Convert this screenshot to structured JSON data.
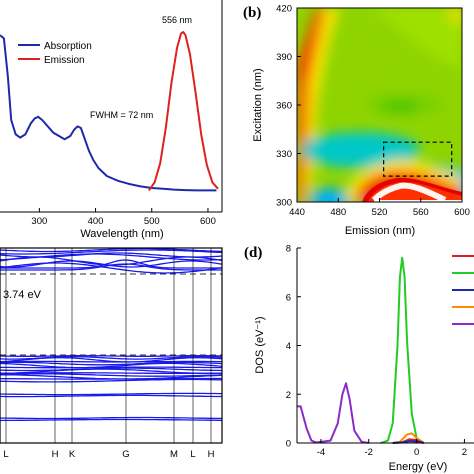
{
  "chart_data": [
    {
      "panel": "a",
      "panel_label": "",
      "type": "line",
      "xlabel": "Wavelength (nm)",
      "xlim": [
        230,
        625
      ],
      "xticks": [
        300,
        400,
        500,
        600
      ],
      "ylim": [
        0,
        1.1
      ],
      "legend": {
        "placement": "top-left",
        "entries": [
          "Absorption",
          "Emission"
        ]
      },
      "annotations": {
        "peak": "556 nm",
        "fwhm": "FWHM = 72 nm"
      },
      "series": [
        {
          "name": "Absorption",
          "color": "#1f2aa8",
          "x": [
            230,
            237,
            244,
            250,
            258,
            266,
            275,
            285,
            292,
            298,
            305,
            315,
            325,
            335,
            345,
            355,
            362,
            368,
            374,
            380,
            388,
            396,
            405,
            420,
            440,
            460,
            480,
            500,
            520,
            540,
            560,
            580,
            600,
            615
          ],
          "y": [
            0.98,
            0.96,
            0.72,
            0.45,
            0.36,
            0.34,
            0.36,
            0.43,
            0.46,
            0.47,
            0.45,
            0.41,
            0.37,
            0.35,
            0.33,
            0.35,
            0.39,
            0.41,
            0.4,
            0.34,
            0.26,
            0.2,
            0.15,
            0.1,
            0.07,
            0.05,
            0.035,
            0.025,
            0.02,
            0.015,
            0.012,
            0.01,
            0.01,
            0.01
          ]
        },
        {
          "name": "Emission",
          "color": "#e02020",
          "x": [
            495,
            505,
            515,
            525,
            535,
            545,
            552,
            556,
            560,
            568,
            578,
            588,
            598,
            608,
            618
          ],
          "y": [
            0.01,
            0.06,
            0.18,
            0.4,
            0.68,
            0.9,
            0.99,
            1.0,
            0.98,
            0.86,
            0.62,
            0.36,
            0.17,
            0.06,
            0.02
          ]
        }
      ]
    },
    {
      "panel": "b",
      "panel_label": "(b)",
      "type": "heatmap",
      "xlabel": "Emission (nm)",
      "ylabel": "Excitation (nm)",
      "xlim": [
        440,
        600
      ],
      "ylim": [
        300,
        420
      ],
      "xticks": [
        440,
        480,
        520,
        560,
        600
      ],
      "yticks": [
        300,
        330,
        360,
        390,
        420
      ],
      "highlight_box": {
        "x": [
          524,
          590
        ],
        "y": [
          316,
          337
        ]
      }
    },
    {
      "panel": "c",
      "panel_label": "",
      "type": "line",
      "xtick_labels": [
        "L",
        "H",
        "K",
        "G",
        "M",
        "L",
        "H"
      ],
      "band_gap_label": "3.74 eV",
      "line_color": "#1a1aee"
    },
    {
      "panel": "d",
      "panel_label": "(d)",
      "type": "line",
      "xlabel": "Energy (eV)",
      "ylabel": "DOS (eV⁻¹)",
      "xlim": [
        -5,
        2.4
      ],
      "ylim": [
        0,
        8
      ],
      "xticks": [
        -4,
        -2,
        0,
        2
      ],
      "yticks": [
        0,
        2,
        4,
        6,
        8
      ],
      "legend_colors": [
        "#e02020",
        "#22cc22",
        "#1f2aa8",
        "#ff8c00",
        "#8b2bc9"
      ],
      "series": [
        {
          "color": "#22cc22",
          "x": [
            -1.5,
            -1.2,
            -1.0,
            -0.8,
            -0.7,
            -0.6,
            -0.5,
            -0.4,
            -0.2,
            0.0,
            0.3
          ],
          "y": [
            0,
            0.1,
            0.8,
            4.0,
            6.8,
            7.6,
            6.8,
            4.2,
            1.2,
            0.2,
            0
          ]
        },
        {
          "color": "#8b2bc9",
          "x": [
            -5.0,
            -4.85,
            -4.6,
            -4.4,
            -4.2,
            -3.6,
            -3.3,
            -3.1,
            -2.95,
            -2.8,
            -2.6,
            -2.3,
            -2.0
          ],
          "y": [
            1.5,
            1.5,
            0.6,
            0.1,
            0.02,
            0.1,
            0.8,
            2.0,
            2.45,
            1.8,
            0.5,
            0.05,
            0
          ]
        },
        {
          "color": "#ff8c00",
          "x": [
            -1.0,
            -0.7,
            -0.4,
            -0.2,
            0.0,
            0.3
          ],
          "y": [
            0,
            0.05,
            0.35,
            0.4,
            0.2,
            0
          ]
        },
        {
          "color": "#e02020",
          "x": [
            -1.0,
            -0.6,
            -0.3,
            0.0,
            0.3
          ],
          "y": [
            0,
            0.03,
            0.15,
            0.12,
            0
          ]
        },
        {
          "color": "#1f2aa8",
          "x": [
            -1.0,
            -0.6,
            -0.3,
            0.0,
            0.3
          ],
          "y": [
            0,
            0.02,
            0.08,
            0.06,
            0
          ]
        }
      ]
    }
  ]
}
